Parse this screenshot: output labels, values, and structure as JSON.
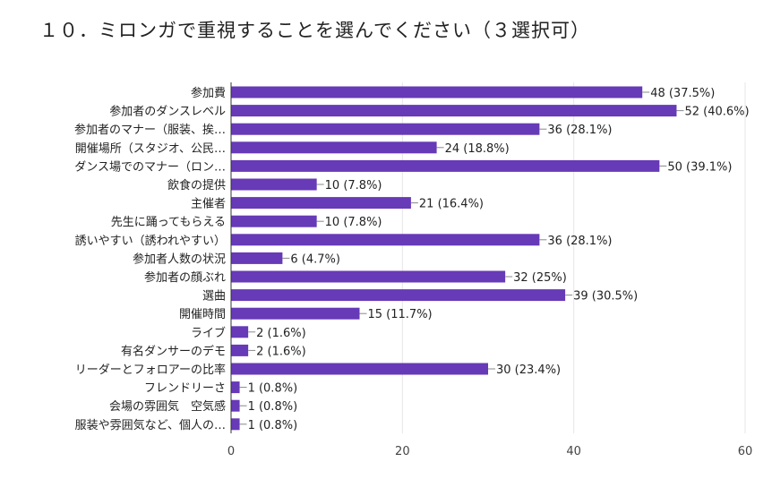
{
  "chart_data": {
    "type": "bar",
    "orientation": "horizontal",
    "title": "１０．ミロンガで重視することを選んでください（３選択可）",
    "categories": [
      "参加費",
      "参加者のダンスレベル",
      "参加者のマナー（服装、挨…",
      "開催場所（スタジオ、公民…",
      "ダンス場でのマナー（ロン…",
      "飲食の提供",
      "主催者",
      "先生に踊ってもらえる",
      "誘いやすい（誘われやすい）",
      "参加者人数の状況",
      "参加者の顔ぶれ",
      "選曲",
      "開催時間",
      "ライブ",
      "有名ダンサーのデモ",
      "リーダーとフォロアーの比率",
      "フレンドリーさ",
      "会場の雰囲気　空気感",
      "服装や雰囲気など、個人の…"
    ],
    "values": [
      48,
      52,
      36,
      24,
      50,
      10,
      21,
      10,
      36,
      6,
      32,
      39,
      15,
      2,
      2,
      30,
      1,
      1,
      1
    ],
    "labels": [
      "48 (37.5%)",
      "52 (40.6%)",
      "36 (28.1%)",
      "24 (18.8%)",
      "50 (39.1%)",
      "10 (7.8%)",
      "21 (16.4%)",
      "10 (7.8%)",
      "36 (28.1%)",
      "6 (4.7%)",
      "32 (25%)",
      "39 (30.5%)",
      "15 (11.7%)",
      "2 (1.6%)",
      "2 (1.6%)",
      "30 (23.4%)",
      "1 (0.8%)",
      "1 (0.8%)",
      "1 (0.8%)"
    ],
    "xticks": [
      "0",
      "20",
      "40",
      "60"
    ],
    "xlim": [
      0,
      60
    ],
    "grid": true,
    "bar_color": "#673ab7"
  }
}
